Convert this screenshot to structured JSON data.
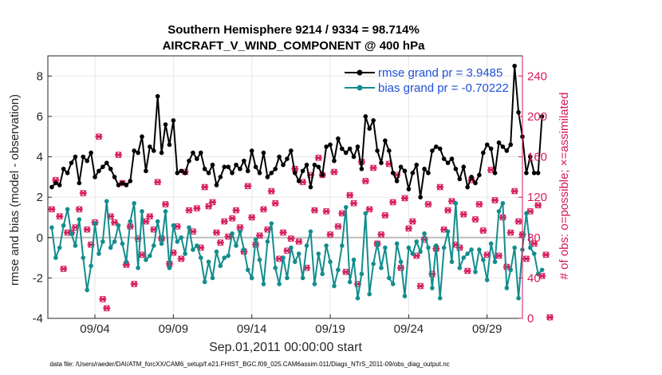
{
  "chart_data": {
    "type": "line",
    "title": "Southern Hemisphere 9214 / 9334 = 98.714%",
    "subtitle": "AIRCRAFT_V_WIND_COMPONENT @ 400 hPa",
    "xlabel": "Sep.01,2011 00:00:00 start",
    "ylabel": "rmse and bias (model - observation)",
    "y2label": "# of obs: o=possible; ×=assimilated",
    "footnote": "data file: /Users/raeder/DAI/ATM_forcXX/CAM6_setup/f.e21.FHIST_BGC.f09_025.CAM6assim.011/Diags_NTrS_2011-09/obs_diag_output.nc",
    "xlim": [
      1.0,
      31.25
    ],
    "ylim": [
      -4,
      9
    ],
    "y2lim": [
      0,
      260
    ],
    "x_ticks": [
      4,
      9,
      14,
      19,
      24,
      29
    ],
    "x_tick_labels": [
      "09/04",
      "09/09",
      "09/14",
      "09/19",
      "09/24",
      "09/29"
    ],
    "y_ticks": [
      -4,
      -2,
      0,
      2,
      4,
      6,
      8
    ],
    "y2_ticks": [
      0,
      40,
      80,
      120,
      160,
      200,
      240
    ],
    "grid": true,
    "legend_position": "top-right",
    "colors": {
      "rmse": "#000000",
      "bias": "#138d8d",
      "obs": "#d6195a",
      "zero": "#bdbdbd"
    },
    "rmse_start": 1.25,
    "bias_start": 1.25,
    "obs_start": 1.25,
    "step": 0.25,
    "series": [
      {
        "name": "rmse grand pr = 3.9485",
        "values": [
          2.5,
          2.7,
          2.6,
          3.4,
          3.2,
          3.7,
          4.0,
          2.7,
          4.0,
          3.8,
          4.2,
          3.0,
          3.3,
          3.5,
          3.7,
          3.4,
          3.0,
          2.6,
          2.7,
          2.6,
          2.8,
          4.3,
          4.2,
          5.0,
          3.3,
          4.5,
          4.3,
          7.0,
          4.2,
          5.6,
          4.6,
          5.8,
          3.2,
          3.3,
          3.2,
          3.8,
          4.2,
          3.9,
          4.2,
          3.4,
          3.2,
          3.6,
          2.6,
          3.0,
          3.5,
          3.5,
          3.2,
          3.6,
          3.4,
          3.8,
          3.3,
          4.3,
          3.5,
          3.2,
          4.2,
          3.0,
          3.2,
          3.4,
          4.0,
          3.6,
          3.9,
          4.3,
          3.2,
          2.8,
          3.3,
          3.6,
          2.5,
          3.6,
          3.5,
          3.1,
          4.5,
          4.6,
          3.8,
          4.9,
          4.4,
          4.2,
          4.4,
          4.0,
          4.5,
          3.4,
          6.0,
          5.4,
          5.8,
          4.3,
          3.7,
          4.8,
          4.3,
          3.2,
          2.8,
          3.5,
          3.3,
          2.4,
          3.2,
          3.6,
          2.0,
          3.4,
          3.2,
          4.3,
          4.5,
          4.4,
          3.9,
          3.7,
          3.9,
          3.4,
          2.9,
          3.5,
          2.5,
          3.0,
          2.7,
          3.1,
          4.2,
          4.6,
          4.4,
          3.2,
          4.7,
          4.5,
          4.3,
          4.6,
          8.5,
          6.2,
          5.0,
          3.2,
          4.0,
          3.2,
          3.2,
          6.0
        ]
      },
      {
        "name": "bias grand pr = -0.70222",
        "values": [
          0.5,
          -1.0,
          -0.5,
          0.6,
          1.4,
          0.2,
          -0.4,
          0.9,
          -1.0,
          -2.6,
          -1.4,
          0.7,
          -0.8,
          -0.2,
          1.8,
          -0.5,
          -0.2,
          0.6,
          -0.3,
          -1.2,
          0.8,
          1.7,
          -1.5,
          1.3,
          -1.1,
          -0.9,
          -0.4,
          0.8,
          -0.3,
          1.3,
          -1.5,
          0.6,
          -0.2,
          0.0,
          -0.8,
          0.5,
          -0.6,
          -0.4,
          -1.0,
          -2.2,
          -1.2,
          -2.0,
          -0.7,
          -1.4,
          -1.0,
          -0.9,
          0.2,
          -0.4,
          0.3,
          -0.6,
          -1.6,
          -2.0,
          -0.1,
          -1.1,
          -2.3,
          -0.2,
          0.7,
          -1.5,
          -2.3,
          -1.0,
          -2.0,
          -0.5,
          -1.2,
          -0.8,
          -2.0,
          -0.4,
          0.3,
          -2.3,
          -0.8,
          -1.8,
          -0.4,
          -1.2,
          -2.4,
          -1.6,
          -0.4,
          1.5,
          -2.2,
          -1.1,
          -3.0,
          -1.8,
          1.2,
          -2.8,
          -1.3,
          -0.3,
          -1.5,
          -0.5,
          -2.0,
          -2.3,
          -0.3,
          -1.2,
          -2.9,
          -0.5,
          -0.8,
          -0.2,
          -0.7,
          0.2,
          -0.5,
          -2.5,
          -0.4,
          -3.0,
          -0.5,
          0.3,
          -1.2,
          1.7,
          -1.5,
          -1.0,
          -0.8,
          -0.6,
          -1.7,
          -0.6,
          -1.1,
          -2.1,
          -0.3,
          -1.2,
          1.3,
          1.7,
          -2.5,
          -1.6,
          -0.5,
          -3.0,
          -0.6,
          1.2,
          -0.5,
          -0.8,
          -1.8,
          -1.6
        ]
      },
      {
        "name": "obs count",
        "values": [
          108,
          137,
          101,
          49,
          85,
          85,
          90,
          108,
          124,
          88,
          73,
          95,
          180,
          19,
          10,
          101,
          95,
          162,
          134,
          53,
          91,
          34,
          79,
          63,
          96,
          101,
          88,
          135,
          79,
          113,
          54,
          65,
          91,
          59,
          145,
          107,
          86,
          109,
          70,
          130,
          111,
          115,
          85,
          75,
          96,
          81,
          99,
          107,
          90,
          66,
          131,
          100,
          73,
          82,
          108,
          88,
          126,
          114,
          59,
          85,
          67,
          79,
          148,
          76,
          135,
          50,
          142,
          107,
          159,
          142,
          106,
          83,
          145,
          91,
          104,
          46,
          122,
          114,
          34,
          155,
          136,
          108,
          149,
          74,
          83,
          102,
          153,
          115,
          142,
          50,
          119,
          89,
          96,
          62,
          32,
          78,
          113,
          44,
          69,
          130,
          88,
          107,
          116,
          73,
          70,
          103,
          47,
          137,
          98,
          113,
          87,
          63,
          147,
          117,
          62,
          100,
          51,
          85,
          126,
          96,
          83,
          59,
          106,
          74,
          112,
          42,
          63,
          1
        ]
      }
    ]
  }
}
